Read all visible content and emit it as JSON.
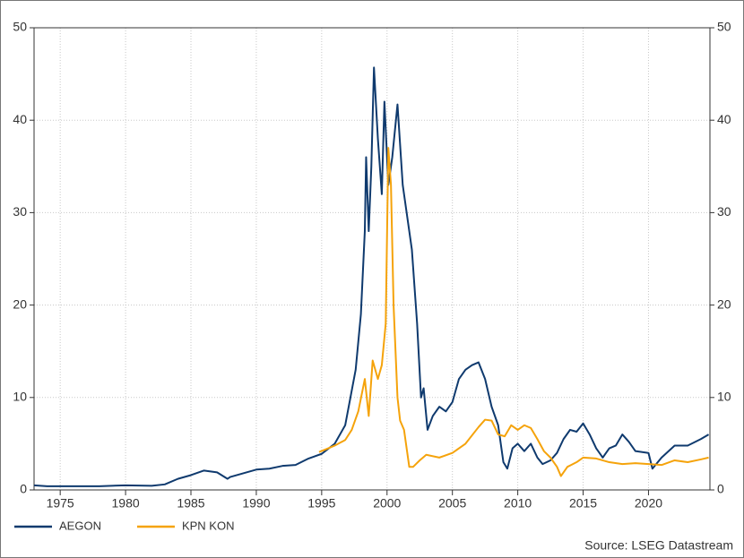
{
  "chart_data": {
    "type": "line",
    "source": "Source: LSEG Datastream",
    "xlim": [
      1973,
      2024.7
    ],
    "xticks": [
      1975,
      1980,
      1985,
      1990,
      1995,
      2000,
      2005,
      2010,
      2015,
      2020
    ],
    "ylim": [
      0,
      50
    ],
    "yticks": [
      0,
      10,
      20,
      30,
      40,
      50
    ],
    "y2lim": [
      0,
      50
    ],
    "y2ticks": [
      0,
      10,
      20,
      30,
      40,
      50
    ],
    "grid": true,
    "legend": "bottom-left",
    "series": [
      {
        "name": "AEGON",
        "color": "#0f3a6e",
        "x": [
          1973,
          1974,
          1976,
          1978,
          1980,
          1982,
          1983,
          1984,
          1985,
          1986,
          1987,
          1987.8,
          1988,
          1989,
          1990,
          1991,
          1992,
          1993,
          1994,
          1995,
          1996,
          1996.8,
          1997.2,
          1997.6,
          1998,
          1998.3,
          1998.4,
          1998.6,
          1998.8,
          1999,
          1999.3,
          1999.6,
          1999.8,
          2000.1,
          2000.4,
          2000.8,
          2001.2,
          2001.5,
          2001.9,
          2002.3,
          2002.6,
          2002.8,
          2003.1,
          2003.5,
          2004,
          2004.5,
          2005,
          2005.5,
          2006,
          2006.5,
          2007,
          2007.5,
          2008,
          2008.5,
          2008.9,
          2009.2,
          2009.6,
          2010,
          2010.5,
          2011,
          2011.5,
          2011.9,
          2012.5,
          2013,
          2013.5,
          2014,
          2014.5,
          2015,
          2015.5,
          2016,
          2016.5,
          2017,
          2017.5,
          2018,
          2018.5,
          2019,
          2020,
          2020.3,
          2021,
          2022,
          2023,
          2024,
          2024.6
        ],
        "values": [
          0.5,
          0.4,
          0.4,
          0.4,
          0.5,
          0.45,
          0.6,
          1.2,
          1.6,
          2.1,
          1.9,
          1.2,
          1.4,
          1.8,
          2.2,
          2.3,
          2.6,
          2.7,
          3.4,
          3.9,
          5.0,
          7.0,
          10,
          13,
          19,
          28,
          36,
          28,
          35,
          45.7,
          38,
          32,
          42,
          33,
          36,
          41.7,
          33,
          30,
          26,
          18,
          10,
          11,
          6.5,
          8,
          9,
          8.5,
          9.5,
          12,
          13,
          13.5,
          13.8,
          12,
          9,
          7,
          3,
          2.3,
          4.5,
          5,
          4.2,
          5,
          3.5,
          2.8,
          3.2,
          4,
          5.5,
          6.5,
          6.3,
          7.2,
          6,
          4.5,
          3.5,
          4.5,
          4.8,
          6,
          5.2,
          4.2,
          4,
          2.3,
          3.5,
          4.8,
          4.8,
          5.5,
          6.0
        ]
      },
      {
        "name": "KPN KON",
        "color": "#f5a30b",
        "x": [
          1994.8,
          1995.5,
          1996,
          1996.8,
          1997.3,
          1997.8,
          1998.3,
          1998.6,
          1998.9,
          1999.3,
          1999.6,
          1999.9,
          2000.1,
          2000.3,
          2000.5,
          2000.8,
          2001,
          2001.3,
          2001.7,
          2002,
          2002.5,
          2003,
          2004,
          2005,
          2006,
          2007,
          2007.5,
          2008,
          2008.5,
          2009,
          2009.5,
          2010,
          2010.5,
          2011,
          2011.5,
          2012,
          2012.5,
          2013,
          2013.3,
          2013.8,
          2014.5,
          2015,
          2016,
          2017,
          2018,
          2019,
          2020,
          2021,
          2022,
          2023,
          2024,
          2024.6
        ],
        "values": [
          4.1,
          4.5,
          4.8,
          5.4,
          6.5,
          8.5,
          12,
          8,
          14,
          12,
          13.5,
          18,
          37,
          33,
          20,
          10,
          7.5,
          6.5,
          2.5,
          2.5,
          3.2,
          3.8,
          3.5,
          4,
          5,
          6.8,
          7.6,
          7.5,
          6,
          5.8,
          7,
          6.5,
          7,
          6.7,
          5.5,
          4.2,
          3.5,
          2.5,
          1.5,
          2.5,
          3.0,
          3.5,
          3.4,
          3.0,
          2.8,
          2.9,
          2.8,
          2.7,
          3.2,
          3.0,
          3.3,
          3.5
        ]
      }
    ]
  }
}
